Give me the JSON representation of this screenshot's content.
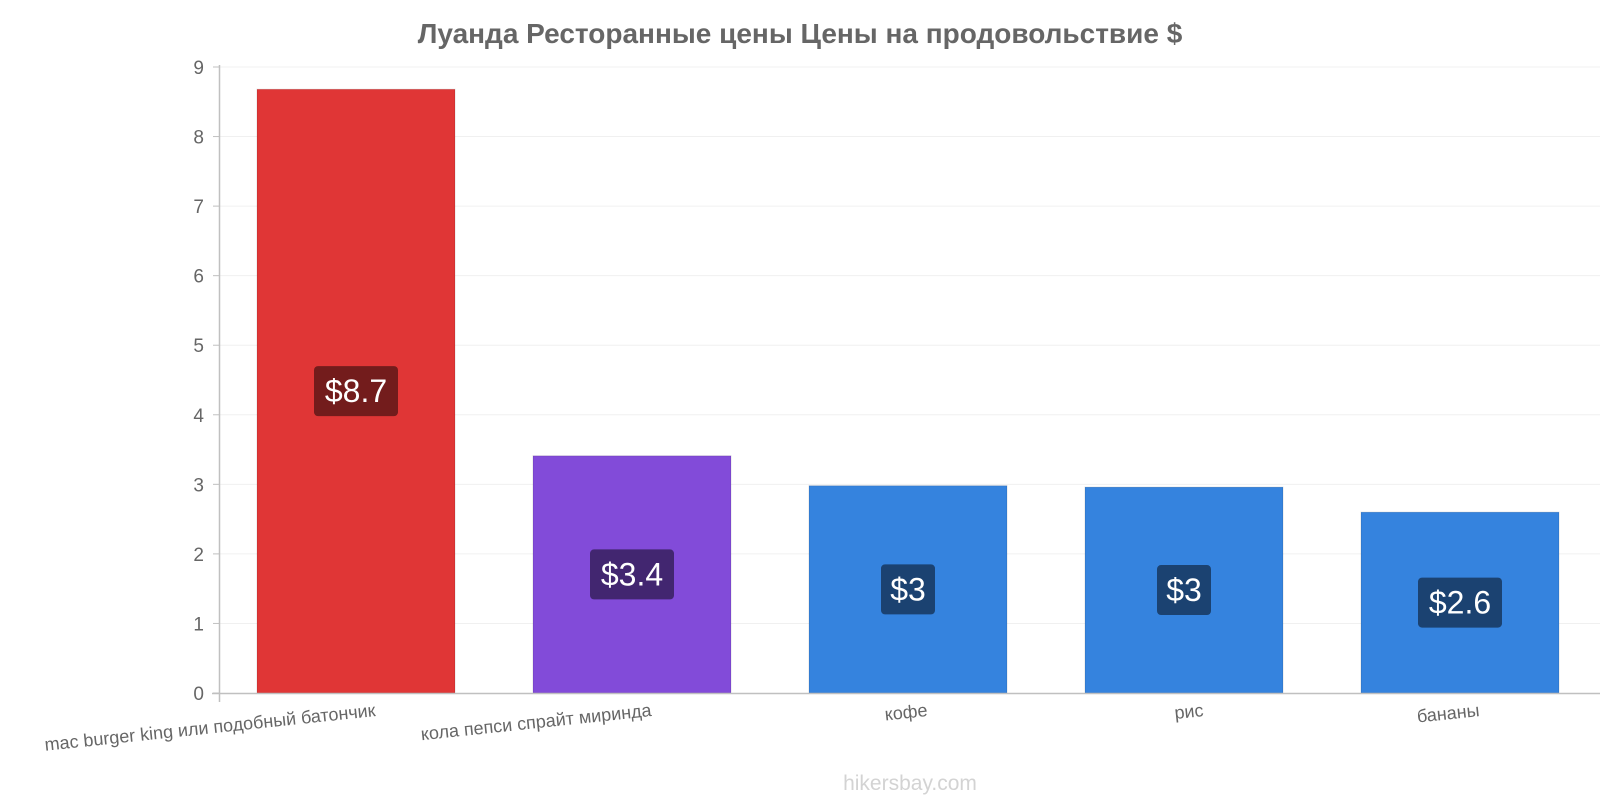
{
  "chart_data": {
    "type": "bar",
    "title": "Луанда Ресторанные цены Цены на продовольствие $",
    "xlabel": "",
    "ylabel": "",
    "ylim": [
      0,
      9
    ],
    "yticks": [
      "0",
      "1",
      "2",
      "3",
      "4",
      "5",
      "6",
      "7",
      "8",
      "9"
    ],
    "grid": true,
    "categories": [
      "mac burger king или подобный батончик",
      "кола пепси спрайт миринда",
      "кофе",
      "рис",
      "бананы"
    ],
    "values": [
      8.68,
      3.41,
      2.98,
      2.96,
      2.6
    ],
    "data_labels": [
      "$8.7",
      "$3.4",
      "$3",
      "$3",
      "$2.6"
    ],
    "colors": [
      "#e03636",
      "#824bd9",
      "#3583de",
      "#3583de",
      "#3583de"
    ],
    "label_bg_colors": [
      "#731c1c",
      "#422670",
      "#1b4271",
      "#1b4271",
      "#1b4271"
    ]
  },
  "watermark": "hikersbay.com"
}
